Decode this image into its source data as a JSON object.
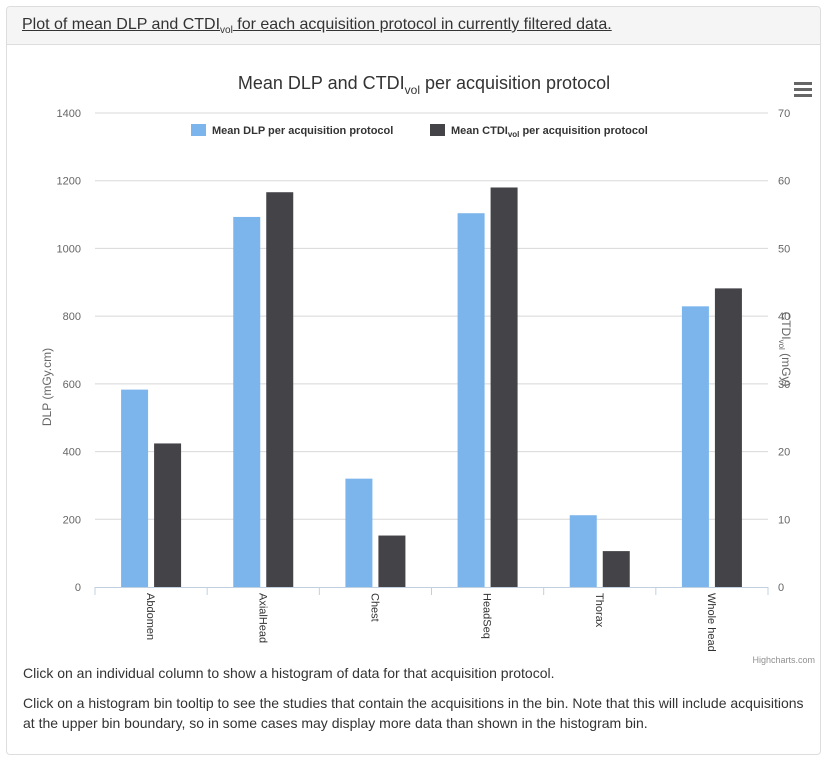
{
  "heading": {
    "text_before": "Plot of mean DLP and CTDI",
    "text_sub": "vol",
    "text_after": " for each acquisition protocol in currently filtered data."
  },
  "chart_data": {
    "type": "bar",
    "title": {
      "main": "Mean DLP and CTDI",
      "sub": "vol",
      "rest": " per acquisition protocol"
    },
    "categories": [
      "Abdomen",
      "AxialHead",
      "Chest",
      "HeadSeq",
      "Thorax",
      "Whole head"
    ],
    "series": [
      {
        "name": "Mean DLP per acquisition protocol",
        "legend": {
          "before": "Mean DLP per acquisition protocol",
          "sub": "",
          "after": ""
        },
        "axis": "left",
        "color": "#7cb5ec",
        "values": [
          583,
          1093,
          320,
          1104,
          212,
          829
        ]
      },
      {
        "name": "Mean CTDIvol per acquisition protocol",
        "legend": {
          "before": "Mean CTDI",
          "sub": "vol",
          "after": " per acquisition protocol"
        },
        "axis": "right",
        "color": "#434348",
        "values": [
          21.2,
          58.3,
          7.6,
          59.0,
          5.3,
          44.1
        ]
      }
    ],
    "y_left": {
      "label": "DLP (mGy.cm)",
      "min": 0,
      "max": 1400,
      "ticks": [
        0,
        200,
        400,
        600,
        800,
        1000,
        1200,
        1400
      ]
    },
    "y_right": {
      "label": {
        "before": "CTDI",
        "sub": "vol",
        "after": " (mGy)"
      },
      "min": 0,
      "max": 70,
      "ticks": [
        0,
        10,
        20,
        30,
        40,
        50,
        60,
        70
      ]
    },
    "legend_position": "top-center",
    "grid": true,
    "credits": "Highcharts.com"
  },
  "notes": [
    "Click on an individual column to show a histogram of data for that acquisition protocol.",
    "Click on a histogram bin tooltip to see the studies that contain the acquisitions in the bin. Note that this will include acquisitions at the upper bin boundary, so in some cases may display more data than shown in the histogram bin."
  ],
  "colors": {
    "dlp": "#7cb5ec",
    "ctdi": "#434348",
    "grid": "#d8d8d8"
  }
}
